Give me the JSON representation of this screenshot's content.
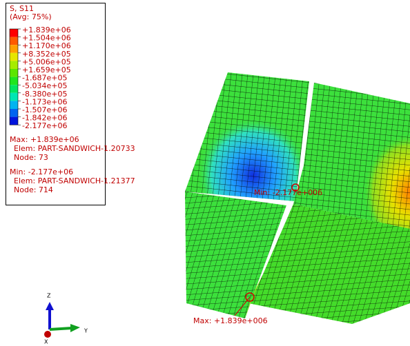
{
  "legend": {
    "title": "S, S11",
    "subtitle": "(Avg: 75%)",
    "labels": [
      "+1.839e+06",
      "+1.504e+06",
      "+1.170e+06",
      "+8.352e+05",
      "+5.006e+05",
      "+1.659e+05",
      "-1.687e+05",
      "-5.034e+05",
      "-8.380e+05",
      "-1.173e+06",
      "-1.507e+06",
      "-1.842e+06",
      "-2.177e+06"
    ]
  },
  "max": {
    "label": "Max: +1.839e+06",
    "elem": "Elem: PART-SANDWICH-1.20733",
    "node": "Node: 73"
  },
  "min": {
    "label": "Min: -2.177e+06",
    "elem": "Elem: PART-SANDWICH-1.21377",
    "node": "Node: 714"
  },
  "viewport": {
    "max_label": "Max: +1.839e+006",
    "min_label": "Min: -2.177e+006"
  },
  "triad": {
    "z": "Z",
    "y": "Y",
    "x": "X"
  }
}
